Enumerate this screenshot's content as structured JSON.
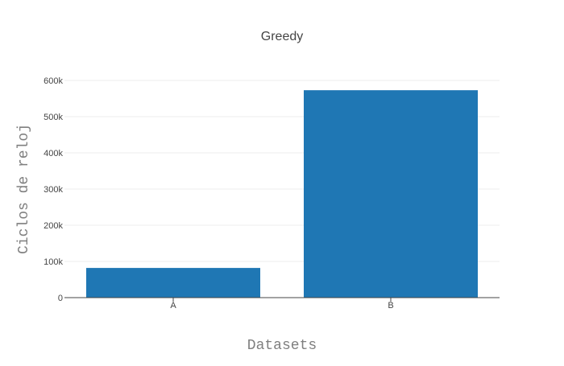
{
  "chart_data": {
    "type": "bar",
    "title": "Greedy",
    "xlabel": "Datasets",
    "ylabel": "Ciclos de reloj",
    "categories": [
      "A",
      "B"
    ],
    "values": [
      82000,
      573000
    ],
    "ylim": [
      0,
      600000
    ],
    "yticks": [
      0,
      100000,
      200000,
      300000,
      400000,
      500000,
      600000
    ],
    "ytick_labels": [
      "0",
      "100k",
      "200k",
      "300k",
      "400k",
      "500k",
      "600k"
    ],
    "grid": true,
    "legend": false,
    "colors": {
      "bar": "#1f77b4"
    }
  }
}
